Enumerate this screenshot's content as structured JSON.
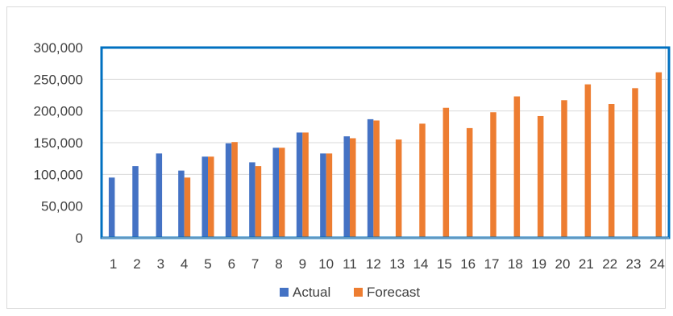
{
  "chart_data": {
    "type": "bar",
    "categories": [
      "1",
      "2",
      "3",
      "4",
      "5",
      "6",
      "7",
      "8",
      "9",
      "10",
      "11",
      "12",
      "13",
      "14",
      "15",
      "16",
      "17",
      "18",
      "19",
      "20",
      "21",
      "22",
      "23",
      "24"
    ],
    "series": [
      {
        "name": "Actual",
        "color": "#4472c4",
        "values": [
          95000,
          113000,
          133000,
          106000,
          128000,
          149000,
          119000,
          142000,
          166000,
          133000,
          160000,
          187000,
          null,
          null,
          null,
          null,
          null,
          null,
          null,
          null,
          null,
          null,
          null,
          null
        ]
      },
      {
        "name": "Forecast",
        "color": "#ed7d31",
        "values": [
          null,
          null,
          null,
          95000,
          128000,
          151000,
          113000,
          142000,
          166000,
          133000,
          157000,
          185000,
          155000,
          180000,
          205000,
          173000,
          198000,
          223000,
          192000,
          217000,
          242000,
          211000,
          236000,
          261000
        ]
      }
    ],
    "y_ticks": [
      "0",
      "50,000",
      "100,000",
      "150,000",
      "200,000",
      "250,000",
      "300,000"
    ],
    "ylim": [
      0,
      300000
    ],
    "legend_position": "bottom",
    "gridlines": true,
    "plot_border_color": "#0070c0"
  }
}
